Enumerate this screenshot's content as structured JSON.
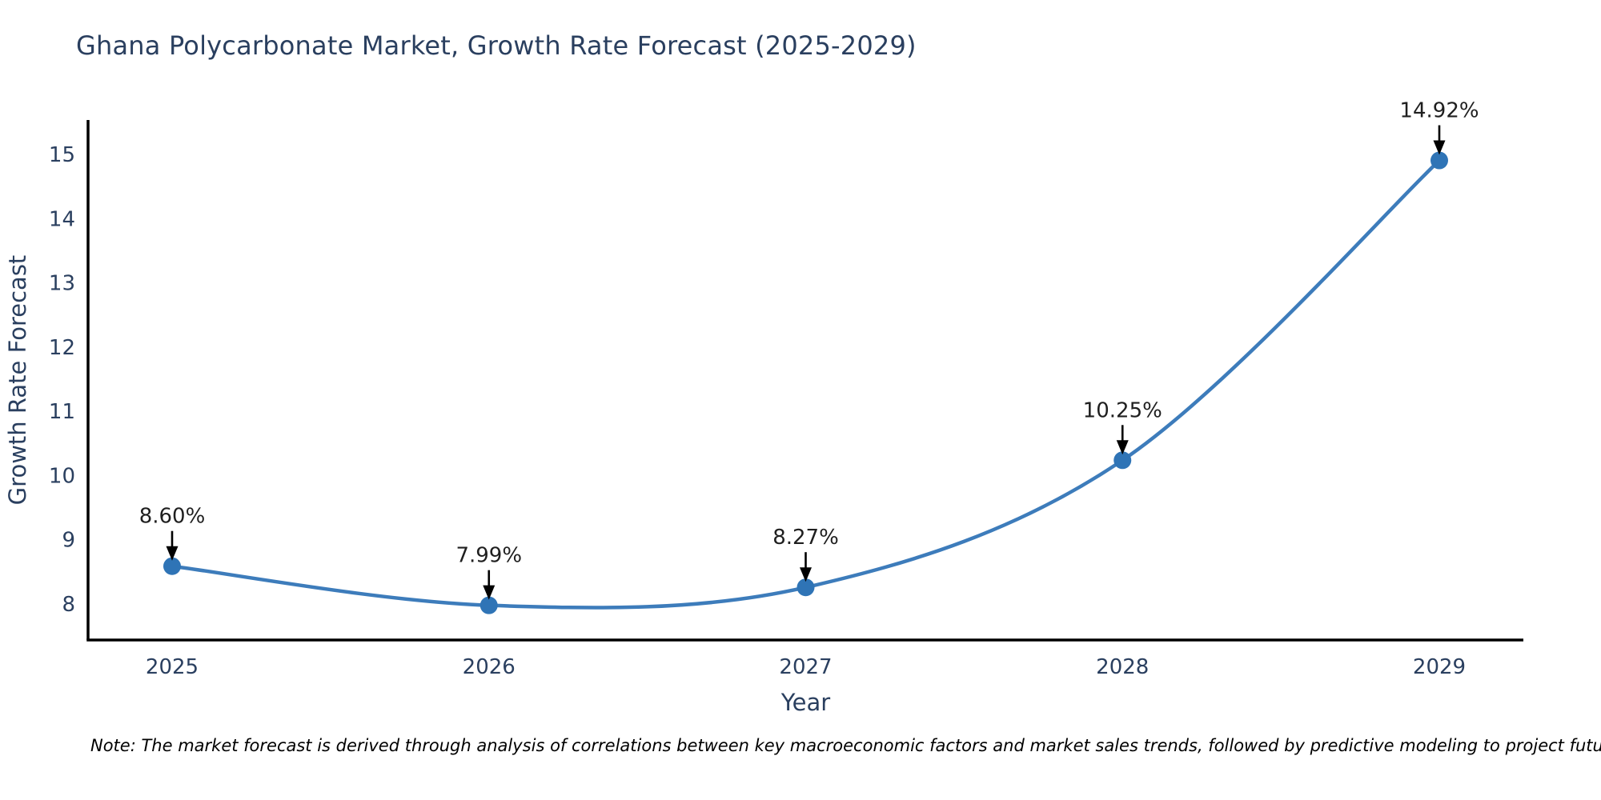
{
  "chart": {
    "note": "Note: The market forecast is derived through analysis of correlations between key macroeconomic factors and market sales trends, followed by predictive modeling to project future sales",
    "colors": {
      "line": "#3d7cbb",
      "marker": "#2f74b6",
      "axis": "#000000",
      "tick_text": "#2a3f5f",
      "title_text": "#2a3f5f",
      "annotation_text": "#1f1f1f",
      "arrow": "#000000",
      "background": "#ffffff"
    }
  },
  "chart_data": {
    "type": "line",
    "title": "Ghana Polycarbonate Market, Growth Rate Forecast (2025-2029)",
    "xlabel": "Year",
    "ylabel": "Growth Rate Forecast",
    "categories": [
      "2025",
      "2026",
      "2027",
      "2028",
      "2029"
    ],
    "values": [
      8.6,
      7.99,
      8.27,
      10.25,
      14.92
    ],
    "point_labels": [
      "8.60%",
      "7.99%",
      "8.27%",
      "10.25%",
      "14.92%"
    ],
    "y_ticks": [
      8,
      9,
      10,
      11,
      12,
      13,
      14,
      15
    ],
    "ylim": [
      7.45,
      15.55
    ],
    "line_shape": "spline",
    "grid": false,
    "legend": "none",
    "marker_style": "filled-circle",
    "annotation_style": "value-label-with-down-arrow"
  }
}
